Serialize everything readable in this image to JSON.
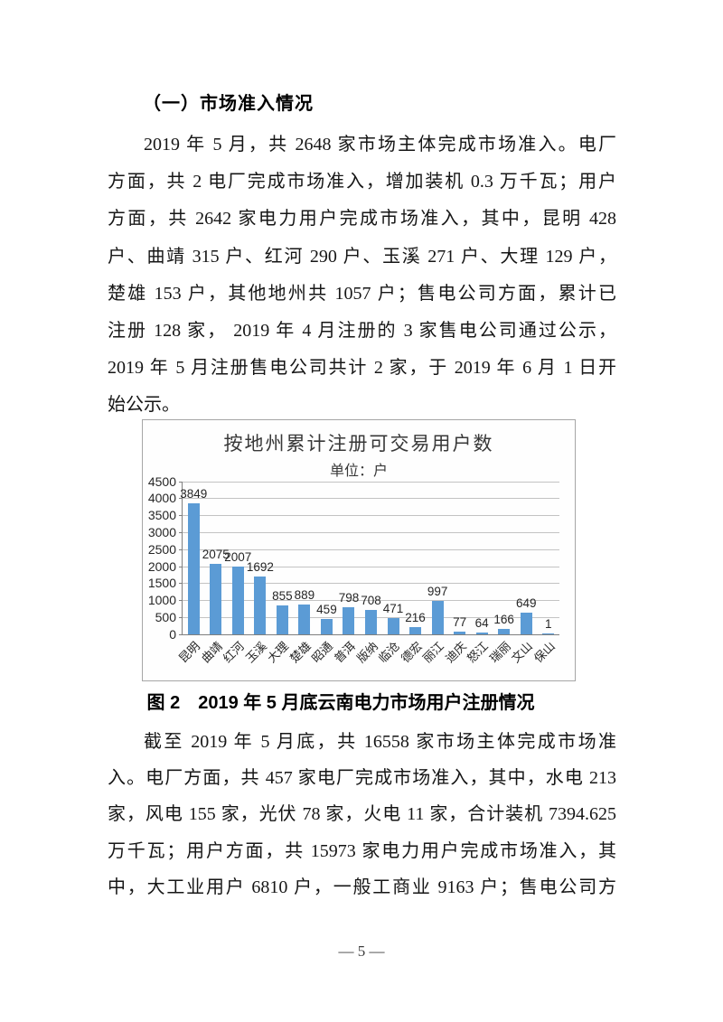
{
  "page": {
    "heading": "（一）市场准入情况",
    "paragraph1": {
      "justify_last_line": false,
      "lines": [
        "2019 年 5 月，共 2648 家市场主体完成市场准入。电厂",
        "方面，共 2 电厂完成市场准入，增加装机 0.3 万千瓦；用户",
        "方面，共 2642 家电力用户完成市场准入，其中，昆明 428",
        "户、曲靖 315 户、红河 290 户、玉溪 271 户、大理 129 户，",
        "楚雄 153 户，其他地州共 1057 户；售电公司方面，累计已",
        "注册 128 家， 2019 年 4 月注册的 3 家售电公司通过公示，",
        "2019 年 5 月注册售电公司共计 2 家，于 2019 年 6 月 1 日开",
        "始公示。"
      ]
    },
    "figure_caption": "图 2　2019 年 5 月底云南电力市场用户注册情况",
    "paragraph2": {
      "justify_last_line": true,
      "lines": [
        "截至 2019 年 5 月底，共 16558 家市场主体完成市场准",
        "入。电厂方面，共 457 家电厂完成市场准入，其中，水电 213",
        "家，风电 155 家，光伏 78 家，火电 11 家，合计装机 7394.625",
        "万千瓦；用户方面，共 15973 家电力用户完成市场准入，其",
        "中，大工业用户 6810 户，一般工商业 9163 户；售电公司方"
      ]
    },
    "page_number": "— 5 —"
  },
  "chart_data": {
    "type": "bar",
    "title": "按地州累计注册可交易用户数",
    "subtitle": "单位：户",
    "categories": [
      "昆明",
      "曲靖",
      "红河",
      "玉溪",
      "大理",
      "楚雄",
      "昭通",
      "普洱",
      "版纳",
      "临沧",
      "德宏",
      "丽江",
      "迪庆",
      "怒江",
      "瑞丽",
      "文山",
      "保山"
    ],
    "values": [
      3849,
      2075,
      2007,
      1692,
      855,
      889,
      459,
      798,
      708,
      471,
      216,
      997,
      77,
      64,
      166,
      649,
      1
    ],
    "xlabel": "",
    "ylabel": "",
    "ylim": [
      0,
      4500
    ],
    "ytick_step": 500,
    "grid": true,
    "legend_position": "none",
    "bar_color": "#5B9BD5"
  }
}
